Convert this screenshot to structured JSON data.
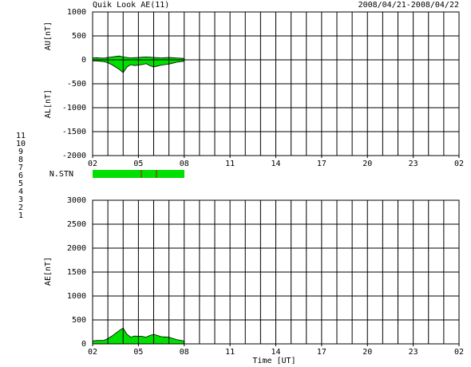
{
  "header": {
    "title": "Quik Look AE(11)",
    "date_range": "2008/04/21-2008/04/22"
  },
  "stations": {
    "label": "N.STN",
    "values": [
      11,
      10,
      9,
      8,
      7,
      6,
      5,
      4,
      3,
      2,
      1
    ],
    "colors": [
      "#00d8d8",
      "#e000e0",
      "#2020c0",
      "#e8e080",
      "#e8d800",
      "#e00000",
      "#c0c0c0",
      "#a0a0a0",
      "#008080",
      "#800080",
      "#0000e0"
    ]
  },
  "chart_data": [
    {
      "type": "area",
      "ylabels": [
        "AU[nT]",
        "AL[nT]"
      ],
      "x": [
        0,
        0.25,
        0.5,
        0.75,
        1,
        1.25,
        1.5,
        1.75,
        2,
        2.25,
        2.5,
        2.75,
        3,
        3.25,
        3.5,
        3.75,
        4,
        4.25,
        4.5,
        4.75,
        5,
        5.25,
        5.5,
        5.75,
        6
      ],
      "series": [
        {
          "name": "AU",
          "color": "#00e000",
          "values": [
            40,
            45,
            40,
            35,
            50,
            60,
            70,
            80,
            60,
            50,
            40,
            45,
            50,
            55,
            60,
            55,
            50,
            45,
            40,
            45,
            50,
            45,
            40,
            35,
            30
          ]
        },
        {
          "name": "AL",
          "color": "#00e000",
          "values": [
            -20,
            -25,
            -30,
            -40,
            -60,
            -100,
            -150,
            -200,
            -270,
            -150,
            -100,
            -120,
            -110,
            -100,
            -80,
            -120,
            -150,
            -130,
            -110,
            -100,
            -90,
            -70,
            -50,
            -40,
            -30
          ]
        }
      ],
      "xlim": [
        0,
        24
      ],
      "xticks": [
        {
          "value": 0,
          "label": "02"
        },
        {
          "value": 3,
          "label": "05"
        },
        {
          "value": 6,
          "label": "08"
        },
        {
          "value": 9,
          "label": "11"
        },
        {
          "value": 12,
          "label": "14"
        },
        {
          "value": 15,
          "label": "17"
        },
        {
          "value": 18,
          "label": "20"
        },
        {
          "value": 21,
          "label": "23"
        },
        {
          "value": 24,
          "label": "02"
        }
      ],
      "ylim": [
        -2000,
        1000
      ],
      "yticks": [
        -2000,
        -1500,
        -1000,
        -500,
        0,
        500,
        1000
      ],
      "grid": true
    },
    {
      "type": "area",
      "ylabels": [
        "AE[nT]"
      ],
      "xlabel": "Time [UT]",
      "x": [
        0,
        0.25,
        0.5,
        0.75,
        1,
        1.25,
        1.5,
        1.75,
        2,
        2.25,
        2.5,
        2.75,
        3,
        3.25,
        3.5,
        3.75,
        4,
        4.25,
        4.5,
        4.75,
        5,
        5.25,
        5.5,
        5.75,
        6
      ],
      "series": [
        {
          "name": "AE",
          "color": "#00e000",
          "values": [
            60,
            70,
            70,
            75,
            110,
            160,
            220,
            280,
            330,
            200,
            140,
            165,
            160,
            155,
            140,
            175,
            200,
            175,
            150,
            145,
            140,
            115,
            90,
            75,
            60
          ]
        }
      ],
      "xlim": [
        0,
        24
      ],
      "xticks": [
        {
          "value": 0,
          "label": "02"
        },
        {
          "value": 3,
          "label": "05"
        },
        {
          "value": 6,
          "label": "08"
        },
        {
          "value": 9,
          "label": "11"
        },
        {
          "value": 12,
          "label": "14"
        },
        {
          "value": 15,
          "label": "17"
        },
        {
          "value": 18,
          "label": "20"
        },
        {
          "value": 21,
          "label": "23"
        },
        {
          "value": 24,
          "label": "02"
        }
      ],
      "ylim": [
        0,
        3000
      ],
      "yticks": [
        0,
        500,
        1000,
        1500,
        2000,
        2500,
        3000
      ],
      "grid": true
    }
  ]
}
